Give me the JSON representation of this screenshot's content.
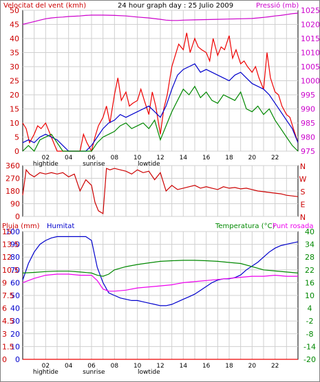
{
  "chart_data": [
    {
      "type": "line",
      "title": "24 hour graph day : 25 Julio 2009",
      "left_label": "Velocitat del vent (kmh)",
      "right_label": "Pressió (mb)",
      "yleft_ticks": [
        0,
        5,
        10,
        15,
        20,
        25,
        30,
        35,
        40,
        45,
        50
      ],
      "yright_ticks": [
        975,
        980,
        985,
        990,
        995,
        1000,
        1005,
        1010,
        1015,
        1020,
        1025
      ],
      "x_ticks": [
        "02",
        "04",
        "06",
        "08",
        "10",
        "12",
        "14",
        "16",
        "18",
        "20",
        "22"
      ],
      "x_annotations": [
        {
          "label": "hightide",
          "hour": 2.0
        },
        {
          "label": "sunrise",
          "hour": 6.2
        },
        {
          "label": "lowtide",
          "hour": 11.0
        }
      ],
      "x_range_hours": [
        0,
        24
      ],
      "grid": true,
      "series": [
        {
          "axis": "right",
          "color": "#cc00cc",
          "x": [
            0,
            0.5,
            1,
            1.5,
            2,
            2.5,
            3,
            3.5,
            4,
            4.5,
            5,
            5.5,
            6,
            7,
            8,
            9,
            10,
            11,
            12,
            12.5,
            13,
            13.5,
            14,
            15,
            16,
            17,
            18,
            19,
            20,
            20.5,
            21,
            21.5,
            22,
            22.5,
            23,
            23.5,
            24
          ],
          "y": [
            1020,
            1020.5,
            1021,
            1021.5,
            1022,
            1022.3,
            1022.5,
            1022.6,
            1022.8,
            1022.9,
            1023,
            1023.2,
            1023.3,
            1023.3,
            1023.2,
            1023,
            1022.6,
            1022.3,
            1021.8,
            1021.5,
            1021.4,
            1021.4,
            1021.5,
            1021.6,
            1021.7,
            1021.8,
            1021.9,
            1022,
            1022.1,
            1022.3,
            1022.5,
            1022.7,
            1023,
            1023.2,
            1023.5,
            1023.8,
            1024
          ]
        },
        {
          "axis": "left",
          "color": "#ee0000",
          "x": [
            0,
            0.3,
            0.6,
            1,
            1.3,
            1.6,
            2,
            2.3,
            2.6,
            3,
            3.3,
            3.6,
            4,
            4.3,
            4.6,
            5,
            5.3,
            5.6,
            6,
            6.3,
            6.6,
            7,
            7.3,
            7.6,
            8,
            8.3,
            8.6,
            9,
            9.3,
            9.6,
            10,
            10.3,
            10.6,
            11,
            11.3,
            11.6,
            12,
            12.3,
            12.6,
            13,
            13.3,
            13.6,
            14,
            14.3,
            14.6,
            15,
            15.3,
            15.6,
            16,
            16.3,
            16.6,
            17,
            17.3,
            17.6,
            18,
            18.3,
            18.6,
            19,
            19.3,
            19.6,
            20,
            20.3,
            20.6,
            21,
            21.3,
            21.6,
            22,
            22.3,
            22.6,
            23,
            23.3,
            23.6,
            24
          ],
          "y": [
            10,
            8,
            3,
            6,
            9,
            8,
            10,
            7,
            4,
            0,
            0,
            0,
            0,
            0,
            0,
            0,
            6,
            3,
            0,
            5,
            9,
            12,
            16,
            10,
            20,
            26,
            18,
            21,
            16,
            17,
            18,
            22,
            18,
            13,
            21,
            16,
            6,
            15,
            20,
            30,
            34,
            38,
            36,
            42,
            35,
            40,
            37,
            36,
            35,
            32,
            40,
            34,
            37,
            36,
            41,
            33,
            36,
            31,
            32,
            30,
            28,
            30,
            26,
            22,
            35,
            26,
            21,
            20,
            16,
            13,
            12,
            8,
            3
          ]
        },
        {
          "axis": "left",
          "color": "#0000cc",
          "x": [
            0,
            0.5,
            1,
            1.5,
            2,
            2.5,
            3,
            3.5,
            4,
            4.5,
            5,
            5.5,
            6,
            6.5,
            7,
            7.5,
            8,
            8.5,
            9,
            9.5,
            10,
            10.5,
            11,
            11.5,
            12,
            12.5,
            13,
            13.5,
            14,
            14.5,
            15,
            15.5,
            16,
            16.5,
            17,
            17.5,
            18,
            18.5,
            19,
            19.5,
            20,
            20.5,
            21,
            21.5,
            22,
            22.5,
            23,
            23.5,
            24
          ],
          "y": [
            3,
            4,
            3,
            5,
            6,
            5,
            4,
            2,
            0,
            0,
            0,
            0,
            2,
            5,
            8,
            10,
            11,
            13,
            12,
            13,
            14,
            15,
            16,
            14,
            12,
            16,
            22,
            27,
            29,
            30,
            31,
            28,
            29,
            28,
            27,
            26,
            25,
            27,
            28,
            26,
            24,
            23,
            22,
            20,
            17,
            14,
            11,
            8,
            3
          ]
        },
        {
          "axis": "left",
          "color": "#008800",
          "x": [
            0,
            0.5,
            1,
            1.5,
            2,
            2.5,
            3,
            3.5,
            4,
            4.5,
            5,
            5.5,
            6,
            6.5,
            7,
            7.5,
            8,
            8.5,
            9,
            9.5,
            10,
            10.5,
            11,
            11.5,
            12,
            12.5,
            13,
            13.5,
            14,
            14.5,
            15,
            15.5,
            16,
            16.5,
            17,
            17.5,
            18,
            18.5,
            19,
            19.5,
            20,
            20.5,
            21,
            21.5,
            22,
            22.5,
            23,
            23.5,
            24
          ],
          "y": [
            0,
            2,
            0,
            4,
            5,
            6,
            3,
            0,
            0,
            0,
            0,
            0,
            0,
            3,
            5,
            6,
            7,
            9,
            10,
            8,
            9,
            10,
            8,
            11,
            4,
            9,
            14,
            18,
            22,
            20,
            23,
            19,
            21,
            18,
            17,
            20,
            19,
            18,
            21,
            15,
            14,
            16,
            13,
            15,
            11,
            8,
            5,
            2,
            0
          ]
        }
      ]
    },
    {
      "type": "line",
      "title": "",
      "right_label_letters": [
        "N",
        "W",
        "S",
        "E",
        "N"
      ],
      "yleft_ticks": [
        0,
        90,
        180,
        270,
        360
      ],
      "x_range_hours": [
        0,
        24
      ],
      "grid": true,
      "series": [
        {
          "color": "#cc0000",
          "x": [
            0,
            0.3,
            0.6,
            1,
            1.5,
            2,
            2.5,
            3,
            3.5,
            4,
            4.5,
            5,
            5.5,
            6,
            6.3,
            6.6,
            7,
            7.3,
            7.6,
            8,
            8.5,
            9,
            9.5,
            10,
            10.5,
            11,
            11.5,
            12,
            12.5,
            13,
            13.5,
            14,
            14.5,
            15,
            15.5,
            16,
            16.5,
            17,
            17.5,
            18,
            18.5,
            19,
            19.5,
            20,
            20.5,
            21,
            21.5,
            22,
            22.5,
            23,
            23.5,
            24
          ],
          "y": [
            150,
            330,
            300,
            280,
            310,
            300,
            310,
            300,
            310,
            280,
            300,
            180,
            260,
            220,
            100,
            40,
            20,
            340,
            330,
            340,
            330,
            320,
            300,
            330,
            310,
            320,
            260,
            310,
            180,
            220,
            190,
            200,
            210,
            220,
            200,
            210,
            200,
            190,
            210,
            200,
            205,
            195,
            200,
            190,
            180,
            175,
            170,
            165,
            160,
            150,
            145,
            140
          ]
        }
      ]
    },
    {
      "type": "line",
      "title": "",
      "left_labels": [
        "Pluja (mm)",
        "Humitat"
      ],
      "right_labels": [
        "Temperatura (°C)",
        "Punt rosada"
      ],
      "yleft_ticks_humidity": [
        0,
        10,
        20,
        30,
        40,
        50,
        60,
        70,
        80,
        90,
        100
      ],
      "yleft_ticks_rain": [
        0,
        1.5,
        3,
        4.5,
        6,
        7.5,
        9,
        10.5,
        12,
        13.5,
        15
      ],
      "yright_ticks": [
        -20,
        -14,
        -8,
        -2,
        4,
        10,
        16,
        22,
        28,
        34,
        40
      ],
      "x_ticks": [
        "02",
        "04",
        "06",
        "08",
        "10",
        "12",
        "14",
        "16",
        "18",
        "20",
        "22"
      ],
      "x_annotations": [
        {
          "label": "hightide",
          "hour": 2.0
        },
        {
          "label": "sunrise",
          "hour": 6.2
        },
        {
          "label": "lowtide",
          "hour": 11.0
        }
      ],
      "x_range_hours": [
        0,
        24
      ],
      "grid": true,
      "series": [
        {
          "axis": "left",
          "color": "#0000cc",
          "x": [
            0,
            0.5,
            1,
            1.5,
            2,
            2.5,
            3,
            3.5,
            4,
            4.5,
            5,
            5.5,
            6,
            6.5,
            7,
            7.5,
            8,
            8.5,
            9,
            9.5,
            10,
            10.5,
            11,
            11.5,
            12,
            12.5,
            13,
            13.5,
            14,
            14.5,
            15,
            15.5,
            16,
            16.5,
            17,
            17.5,
            18,
            18.5,
            19,
            19.5,
            20,
            20.5,
            21,
            21.5,
            22,
            22.5,
            23,
            23.5,
            24
          ],
          "y": [
            62,
            75,
            84,
            90,
            93,
            95,
            96,
            96,
            96,
            96,
            96,
            96,
            93,
            72,
            60,
            52,
            50,
            48,
            47,
            46,
            46,
            45,
            44,
            43,
            42,
            42,
            43,
            45,
            47,
            49,
            51,
            54,
            57,
            60,
            62,
            63,
            63,
            64,
            66,
            70,
            73,
            76,
            80,
            84,
            87,
            89,
            90,
            91,
            92
          ]
        },
        {
          "axis": "right",
          "color": "#008800",
          "x": [
            0,
            1,
            2,
            3,
            4,
            5,
            6,
            6.5,
            7,
            7.5,
            8,
            9,
            10,
            11,
            12,
            13,
            14,
            15,
            16,
            17,
            18,
            19,
            20,
            21,
            22,
            23,
            24
          ],
          "y": [
            20.5,
            20.8,
            21.2,
            21.4,
            21.4,
            21,
            20.5,
            19.5,
            19,
            20,
            22,
            23.5,
            24.5,
            25.3,
            26,
            26.3,
            26.5,
            26.5,
            26.3,
            26,
            25.5,
            25,
            23.5,
            22,
            21.5,
            21,
            20.5
          ]
        },
        {
          "axis": "right",
          "color": "#ee00ee",
          "x": [
            0,
            1,
            2,
            3,
            4,
            5,
            6,
            6.5,
            7,
            7.5,
            8,
            9,
            10,
            11,
            12,
            13,
            14,
            15,
            16,
            17,
            18,
            19,
            20,
            21,
            22,
            23,
            24
          ],
          "y": [
            16,
            18,
            19.5,
            20,
            20,
            19.5,
            19.5,
            17,
            13,
            12,
            12,
            12.5,
            13.5,
            14,
            14.5,
            15,
            16,
            16.5,
            17,
            17.5,
            18,
            18.5,
            19,
            19,
            19.5,
            19,
            19
          ]
        },
        {
          "axis": "left",
          "color": "#ee0000",
          "name_hint": "rain",
          "x": [
            0,
            24
          ],
          "y": [
            0,
            0
          ]
        }
      ]
    }
  ]
}
